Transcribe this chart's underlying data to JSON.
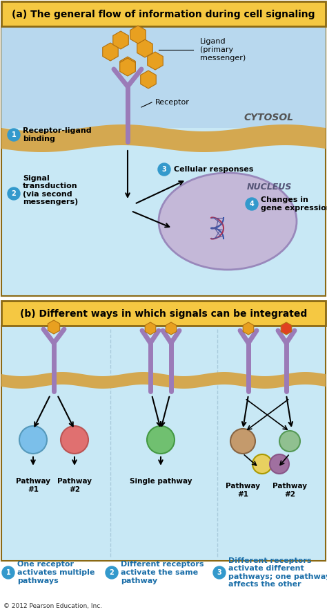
{
  "title_a": "(a) The general flow of information during cell signaling",
  "title_b": "(b) Different ways in which signals can be integrated",
  "copyright": "© 2012 Pearson Education, Inc.",
  "header_bg": "#F5C842",
  "header_border": "#8B6914",
  "panel_a_bg": "#C8E8F5",
  "cytosol_label": "CYTOSOL",
  "nucleus_label": "NUCLEUS",
  "nucleus_bg": "#C4B8D8",
  "ground_color": "#D4A850",
  "receptor_color": "#9B7BB8",
  "ligand_color": "#E8A020",
  "arrow_color": "#1a1a1a",
  "label_circle_color": "#3399CC",
  "label_circle_text": "#ffffff",
  "panel_b_bg": "#C8E8F5",
  "blue_text": "#1a6ea8",
  "pathway_receptor1_color": "#9B7BB8",
  "pathway_circle1_color": "#7BBFEA",
  "pathway_circle2_color": "#E07070",
  "pathway_circle3_color": "#70C070",
  "pathway_circle4_color": "#C49A6C",
  "pathway_circle5_color": "#90C090",
  "pathway_circle6_color": "#E8D060",
  "pathway_circle7_color": "#A070A0",
  "labels_1": [
    "1",
    "One receptor\nactivates multiple\npathways"
  ],
  "labels_2": [
    "2",
    "Different receptors\nactivate the same\npathway"
  ],
  "labels_3": [
    "3",
    "Different receptors\nactivate different\npathways; one pathway\naffects the other"
  ],
  "step1": "1",
  "step1_label": "Receptor-ligand\nbinding",
  "step2": "2",
  "step2_label": "Signal\ntransduction\n(via second\nmessengers)",
  "step3": "3",
  "step3_label": "Cellular responses",
  "step4": "4",
  "step4_label": "Changes in\ngene expression",
  "ligand_label": "Ligand\n(primary\nmessenger)",
  "receptor_label": "Receptor"
}
